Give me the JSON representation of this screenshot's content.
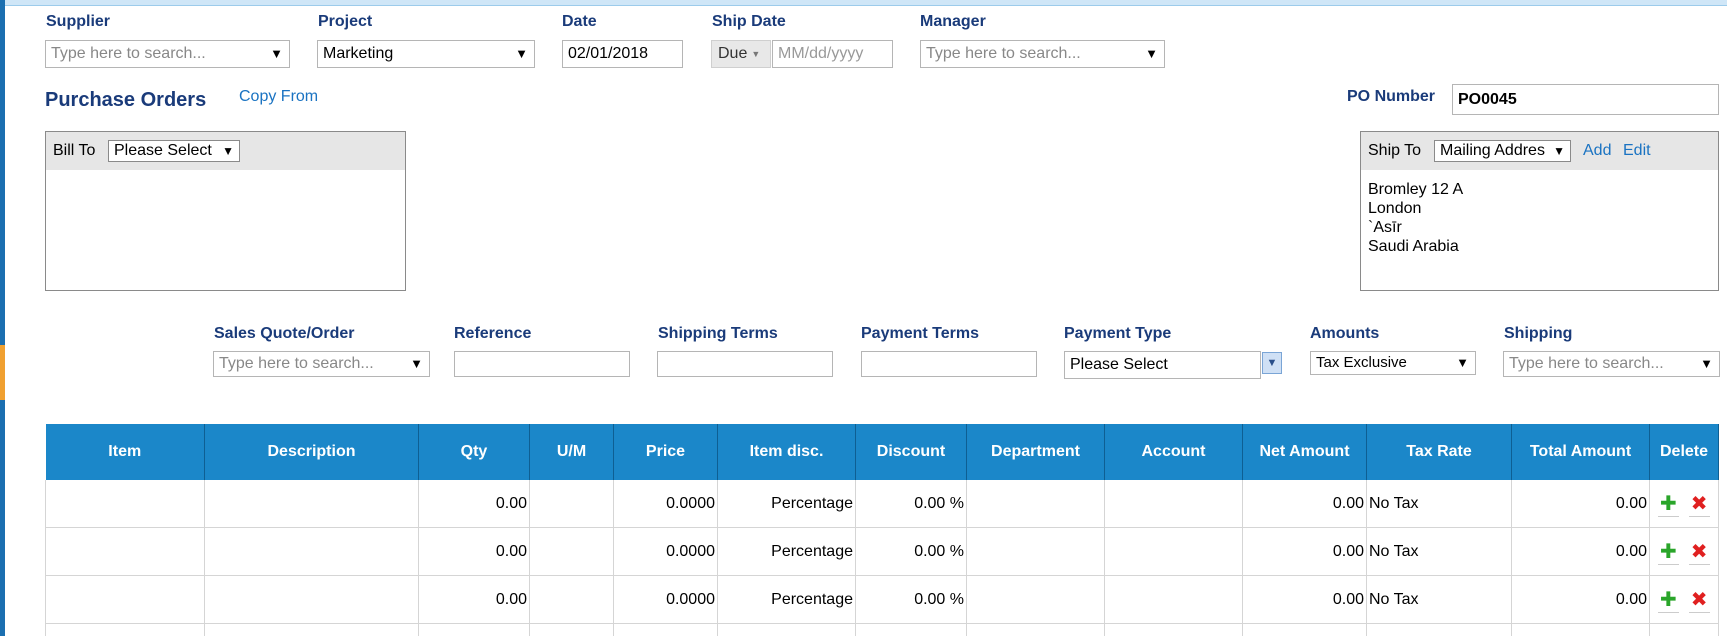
{
  "top_fields": {
    "supplier": {
      "label": "Supplier",
      "placeholder": "Type here to search..."
    },
    "project": {
      "label": "Project",
      "value": "Marketing"
    },
    "date": {
      "label": "Date",
      "value": "02/01/2018"
    },
    "ship_date": {
      "label": "Ship Date",
      "mode": "Due",
      "placeholder": "MM/dd/yyyy"
    },
    "manager": {
      "label": "Manager",
      "placeholder": "Type here to search..."
    }
  },
  "header": {
    "title": "Purchase Orders",
    "copy_from": "Copy From",
    "po_number_label": "PO Number",
    "po_number": "PO0045"
  },
  "bill_to": {
    "label": "Bill To",
    "value": "Please Select"
  },
  "ship_to": {
    "label": "Ship To",
    "value": "Mailing Addres",
    "add": "Add",
    "edit": "Edit",
    "address": [
      "Bromley 12 A",
      "London",
      "`Asīr",
      "Saudi Arabia"
    ]
  },
  "mid_fields": {
    "sales_quote": {
      "label": "Sales Quote/Order",
      "placeholder": "Type here to search..."
    },
    "reference": {
      "label": "Reference",
      "value": ""
    },
    "shipping_terms": {
      "label": "Shipping Terms",
      "value": ""
    },
    "payment_terms": {
      "label": "Payment Terms",
      "value": ""
    },
    "payment_type": {
      "label": "Payment Type",
      "value": "Please Select"
    },
    "amounts": {
      "label": "Amounts",
      "value": "Tax Exclusive"
    },
    "shipping": {
      "label": "Shipping",
      "placeholder": "Type here to search..."
    }
  },
  "table": {
    "columns": [
      "Item",
      "Description",
      "Qty",
      "U/M",
      "Price",
      "Item disc.",
      "Discount",
      "Department",
      "Account",
      "Net Amount",
      "Tax Rate",
      "Total Amount",
      "Delete"
    ],
    "rows": [
      {
        "item": "",
        "description": "",
        "qty": "0.00",
        "um": "",
        "price": "0.0000",
        "item_disc": "Percentage",
        "discount": "0.00 %",
        "department": "",
        "account": "",
        "net_amount": "0.00",
        "tax_rate": "No Tax",
        "total_amount": "0.00"
      },
      {
        "item": "",
        "description": "",
        "qty": "0.00",
        "um": "",
        "price": "0.0000",
        "item_disc": "Percentage",
        "discount": "0.00 %",
        "department": "",
        "account": "",
        "net_amount": "0.00",
        "tax_rate": "No Tax",
        "total_amount": "0.00"
      },
      {
        "item": "",
        "description": "",
        "qty": "0.00",
        "um": "",
        "price": "0.0000",
        "item_disc": "Percentage",
        "discount": "0.00 %",
        "department": "",
        "account": "",
        "net_amount": "0.00",
        "tax_rate": "No Tax",
        "total_amount": "0.00"
      }
    ]
  },
  "icons": {
    "add_row": "plus-icon",
    "delete_row": "close-icon",
    "dropdown": "triangle-down-icon"
  },
  "colors": {
    "header_blue": "#1b87c9",
    "label_navy": "#1a3b7a",
    "link_blue": "#1a73c2",
    "add_green": "#2aa52a",
    "delete_red": "#e02020"
  }
}
